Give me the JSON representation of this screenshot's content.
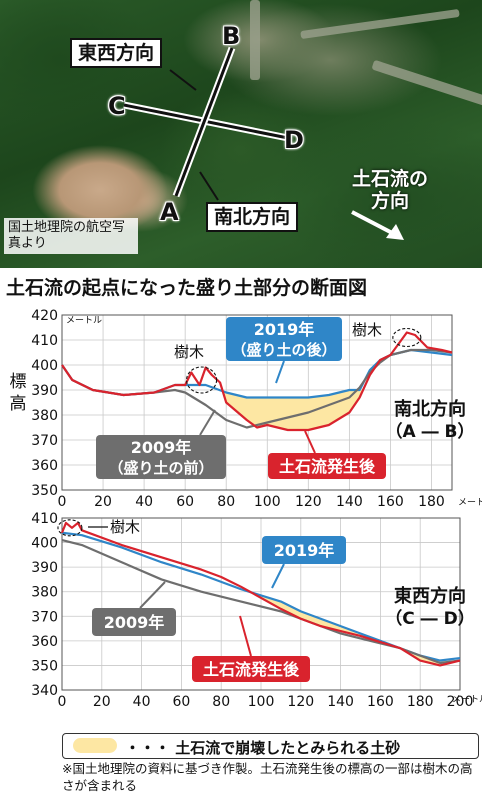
{
  "aerial": {
    "label_ew": "東西方向",
    "label_ns": "南北方向",
    "letter_a": "A",
    "letter_b": "B",
    "letter_c": "C",
    "letter_d": "D",
    "flow_label": "土石流の方向",
    "credit": "国土地理院の航空写真より"
  },
  "section_title": "土石流の起点になった盛り土部分の断面図",
  "legend_key": "・・・ 土石流で崩壊したとみられる土砂",
  "note": "※国土地理院の資料に基づき作製。土石流発生後の標高の一部は樹木の高さが含まれる",
  "colors": {
    "y2019": "#2f86c8",
    "y2009": "#6e6e6e",
    "after": "#d9232d",
    "fill": "#fde7a3"
  },
  "chart_data": [
    {
      "type": "line",
      "title": "南北方向",
      "subtitle": "（A ― B）",
      "ylabel": "標高",
      "xlabel": "メートル",
      "ylim": [
        350,
        420
      ],
      "xlim": [
        0,
        190
      ],
      "xticks": [
        0,
        20,
        40,
        60,
        80,
        100,
        120,
        140,
        160,
        180
      ],
      "yticks": [
        350,
        360,
        370,
        380,
        390,
        400,
        410,
        420
      ],
      "y_unit": "メートル",
      "annotations": [
        "2019年（盛り土の後）",
        "2009年（盛り土の前）",
        "土石流発生後",
        "樹木",
        "樹木"
      ],
      "series": [
        {
          "name": "2019年",
          "color": "#2f86c8",
          "x": [
            0,
            5,
            15,
            30,
            45,
            55,
            60,
            70,
            80,
            90,
            100,
            110,
            120,
            130,
            140,
            145,
            150,
            155,
            160,
            170,
            180,
            190
          ],
          "y": [
            400,
            394,
            390,
            388,
            389,
            392,
            392,
            392,
            389,
            387,
            387,
            387,
            387,
            388,
            390,
            390,
            398,
            402,
            404,
            406,
            405,
            404
          ]
        },
        {
          "name": "2009年",
          "color": "#6e6e6e",
          "x": [
            0,
            5,
            15,
            30,
            45,
            55,
            60,
            70,
            80,
            90,
            100,
            110,
            120,
            130,
            140,
            145,
            150,
            155,
            160,
            170,
            180,
            190
          ],
          "y": [
            400,
            394,
            390,
            388,
            389,
            390,
            389,
            384,
            378,
            375,
            377,
            379,
            381,
            384,
            387,
            391,
            397,
            401,
            404,
            406,
            406,
            405
          ]
        },
        {
          "name": "土石流発生後",
          "color": "#d9232d",
          "x": [
            0,
            5,
            15,
            30,
            45,
            55,
            60,
            63,
            67,
            70,
            73,
            77,
            80,
            90,
            95,
            100,
            110,
            120,
            130,
            140,
            145,
            150,
            155,
            160,
            168,
            172,
            178,
            185,
            190
          ],
          "y": [
            400,
            394,
            390,
            388,
            389,
            392,
            392,
            397,
            392,
            399,
            396,
            393,
            385,
            378,
            375,
            376,
            374,
            374,
            376,
            381,
            387,
            396,
            402,
            404,
            413,
            412,
            407,
            406,
            405
          ]
        }
      ]
    },
    {
      "type": "line",
      "title": "東西方向",
      "subtitle": "（C ― D）",
      "ylim": [
        340,
        410
      ],
      "xlim": [
        0,
        200
      ],
      "xticks": [
        0,
        20,
        40,
        60,
        80,
        100,
        120,
        140,
        160,
        180,
        200
      ],
      "yticks": [
        340,
        350,
        360,
        370,
        380,
        390,
        400,
        410
      ],
      "annotations": [
        "2019年",
        "2009年",
        "土石流発生後",
        "樹木"
      ],
      "series": [
        {
          "name": "2019年",
          "color": "#2f86c8",
          "x": [
            0,
            10,
            30,
            50,
            70,
            90,
            110,
            120,
            130,
            140,
            150,
            170,
            180,
            190,
            200
          ],
          "y": [
            404,
            403,
            398,
            392,
            387,
            381,
            376,
            372,
            369,
            366,
            363,
            357,
            354,
            352,
            353
          ]
        },
        {
          "name": "2009年",
          "color": "#6e6e6e",
          "x": [
            0,
            10,
            30,
            50,
            70,
            90,
            110,
            120,
            130,
            140,
            150,
            170,
            180,
            190,
            200
          ],
          "y": [
            401,
            399,
            392,
            385,
            380,
            376,
            372,
            369,
            366,
            363,
            361,
            357,
            354,
            351,
            352
          ]
        },
        {
          "name": "土石流発生後",
          "color": "#d9232d",
          "x": [
            0,
            2,
            5,
            8,
            10,
            30,
            50,
            70,
            80,
            90,
            110,
            120,
            130,
            140,
            150,
            170,
            180,
            190,
            200
          ],
          "y": [
            404,
            408,
            406,
            408,
            405,
            399,
            394,
            389,
            386,
            382,
            373,
            369,
            366,
            364,
            362,
            357,
            352,
            350,
            352
          ]
        }
      ]
    }
  ]
}
